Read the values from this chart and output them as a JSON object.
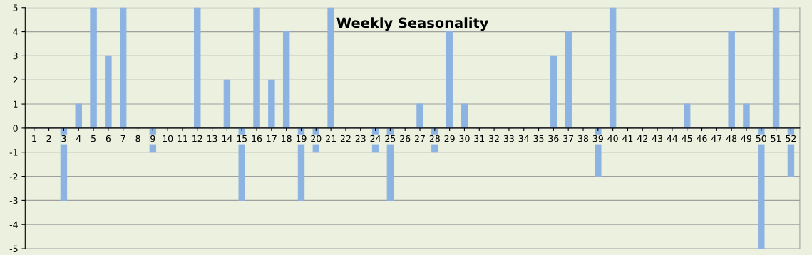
{
  "chart_data": {
    "type": "bar",
    "title": "Weekly Seasonality",
    "categories": [
      "1",
      "2",
      "3",
      "4",
      "5",
      "6",
      "7",
      "8",
      "9",
      "10",
      "11",
      "12",
      "13",
      "14",
      "15",
      "16",
      "17",
      "18",
      "19",
      "20",
      "21",
      "22",
      "23",
      "24",
      "25",
      "26",
      "27",
      "28",
      "29",
      "30",
      "31",
      "32",
      "33",
      "34",
      "35",
      "36",
      "37",
      "38",
      "39",
      "40",
      "41",
      "42",
      "43",
      "44",
      "45",
      "46",
      "47",
      "48",
      "49",
      "50",
      "51",
      "52"
    ],
    "values": [
      0,
      0,
      -3,
      1,
      5,
      3,
      5,
      0,
      -1,
      0,
      0,
      5,
      0,
      2,
      -3,
      5,
      2,
      4,
      -3,
      -1,
      5,
      0,
      0,
      -1,
      -3,
      0,
      1,
      -1,
      4,
      1,
      0,
      0,
      0,
      0,
      0,
      3,
      4,
      0,
      -2,
      5,
      0,
      0,
      0,
      0,
      1,
      0,
      0,
      4,
      1,
      -5,
      5,
      -2
    ],
    "color": "#8db3e2",
    "ylim": [
      -5,
      5
    ],
    "yticks": [
      -5,
      -4,
      -3,
      -2,
      -1,
      0,
      1,
      2,
      3,
      4,
      5
    ],
    "grid": "y"
  }
}
